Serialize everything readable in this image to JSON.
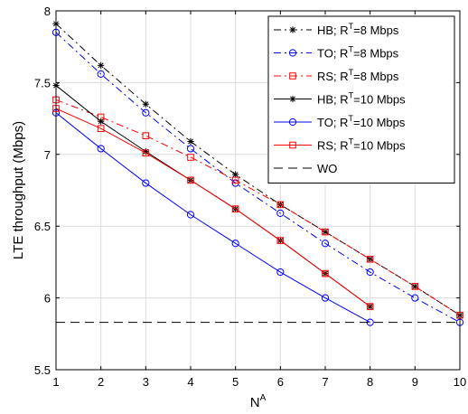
{
  "chart_data": {
    "type": "line",
    "xlabel_base": "N",
    "xlabel_sup": "A",
    "ylabel": "LTE throughput (Mbps)",
    "xlim": [
      1,
      10
    ],
    "ylim": [
      5.5,
      8
    ],
    "xticks": [
      1,
      2,
      3,
      4,
      5,
      6,
      7,
      8,
      9,
      10
    ],
    "yticks": [
      5.5,
      6,
      6.5,
      7,
      7.5,
      8
    ],
    "xtick_labels": [
      "1",
      "2",
      "3",
      "4",
      "5",
      "6",
      "7",
      "8",
      "9",
      "10"
    ],
    "ytick_labels": [
      "5.5",
      "6",
      "6.5",
      "7",
      "7.5",
      "8"
    ],
    "grid": true,
    "legend_placement": "top-right",
    "series": [
      {
        "label_pre": "HB; R",
        "label_sup": "T",
        "label_post": "=8 Mbps",
        "color": "#000000",
        "dash": "dashdot",
        "marker": "asterisk",
        "x": [
          1,
          2,
          3,
          4,
          5,
          6,
          7,
          8,
          9,
          10
        ],
        "y": [
          7.91,
          7.62,
          7.35,
          7.09,
          6.86,
          6.65,
          6.46,
          6.27,
          6.08,
          5.88
        ]
      },
      {
        "label_pre": "TO; R",
        "label_sup": "T",
        "label_post": "=8 Mbps",
        "color": "#0000ff",
        "dash": "dashdot",
        "marker": "circle",
        "x": [
          1,
          2,
          3,
          4,
          5,
          6,
          7,
          8,
          9,
          10
        ],
        "y": [
          7.85,
          7.56,
          7.29,
          7.04,
          6.8,
          6.59,
          6.38,
          6.18,
          6.0,
          5.83
        ]
      },
      {
        "label_pre": "RS; R",
        "label_sup": "T",
        "label_post": "=8 Mbps",
        "color": "#ff0000",
        "dash": "dashdot",
        "marker": "square",
        "x": [
          1,
          2,
          3,
          4,
          5,
          6,
          7,
          8,
          9,
          10
        ],
        "y": [
          7.38,
          7.26,
          7.13,
          6.98,
          6.82,
          6.65,
          6.46,
          6.27,
          6.08,
          5.88
        ]
      },
      {
        "label_pre": "HB; R",
        "label_sup": "T",
        "label_post": "=10 Mbps",
        "color": "#000000",
        "dash": "solid",
        "marker": "asterisk",
        "x": [
          1,
          2,
          3,
          4,
          5,
          6,
          7,
          8
        ],
        "y": [
          7.48,
          7.23,
          7.02,
          6.82,
          6.62,
          6.4,
          6.17,
          5.94
        ]
      },
      {
        "label_pre": "TO; R",
        "label_sup": "T",
        "label_post": "=10 Mbps",
        "color": "#0000ff",
        "dash": "solid",
        "marker": "circle",
        "x": [
          1,
          2,
          3,
          4,
          5,
          6,
          7,
          8
        ],
        "y": [
          7.29,
          7.04,
          6.8,
          6.58,
          6.38,
          6.18,
          6.0,
          5.83
        ]
      },
      {
        "label_pre": "RS; R",
        "label_sup": "T",
        "label_post": "=10 Mbps",
        "color": "#ff0000",
        "dash": "solid",
        "marker": "square",
        "x": [
          1,
          2,
          3,
          4,
          5,
          6,
          7,
          8
        ],
        "y": [
          7.32,
          7.18,
          7.01,
          6.82,
          6.62,
          6.4,
          6.17,
          5.94
        ]
      },
      {
        "label_pre": "WO",
        "label_sup": "",
        "label_post": "",
        "color": "#000000",
        "dash": "dashed",
        "marker": "none",
        "x": [
          1,
          10
        ],
        "y": [
          5.83,
          5.83
        ]
      }
    ]
  }
}
